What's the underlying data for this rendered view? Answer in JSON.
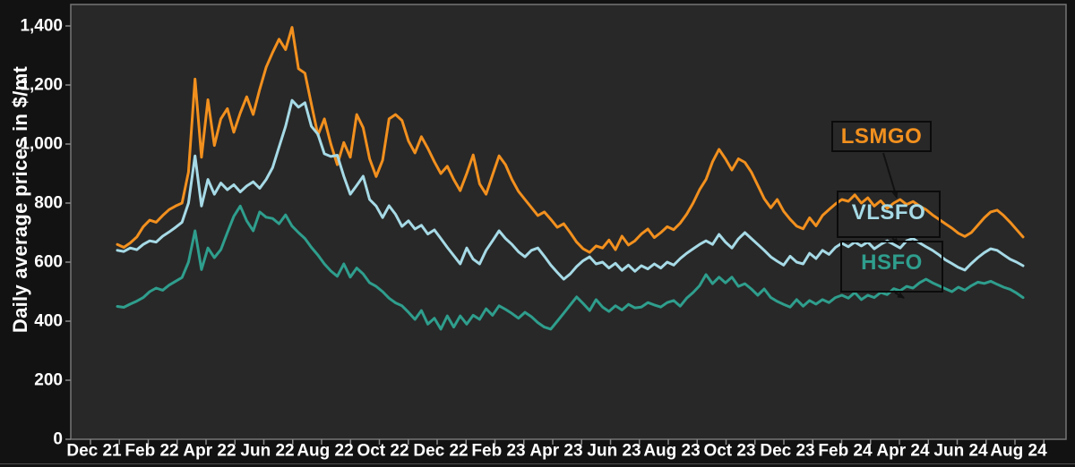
{
  "chart_data": {
    "type": "line",
    "title": "",
    "ylabel": "Daily average prices in $/mt",
    "xlabel": "",
    "ylim": [
      0,
      1473
    ],
    "grid": false,
    "legend_position": "callout-boxes-overlaid-right",
    "y_ticks": [
      0,
      200,
      400,
      600,
      800,
      1000,
      1200,
      1400
    ],
    "y_tick_labels": [
      "0",
      "200",
      "400",
      "600",
      "800",
      "1,000",
      "1,200",
      "1,400"
    ],
    "x_tick_labels": [
      "Dec 21",
      "Feb 22",
      "Apr 22",
      "Jun 22",
      "Aug 22",
      "Oct 22",
      "Dec 22",
      "Feb 23",
      "Apr 23",
      "Jun 23",
      "Aug 23",
      "Oct 23",
      "Dec 23",
      "Feb 24",
      "Apr 24",
      "Jun 24",
      "Aug 24"
    ],
    "x_minor_tick_interval": "monthly",
    "series": [
      {
        "name": "LSMGO",
        "color": "#F2901E",
        "values": [
          660,
          650,
          665,
          685,
          720,
          742,
          735,
          758,
          778,
          790,
          800,
          905,
          1220,
          955,
          1150,
          995,
          1085,
          1120,
          1040,
          1105,
          1160,
          1100,
          1185,
          1260,
          1310,
          1355,
          1320,
          1395,
          1255,
          1240,
          1135,
          1030,
          1085,
          1000,
          930,
          1005,
          955,
          1100,
          1055,
          950,
          890,
          945,
          1085,
          1100,
          1080,
          1010,
          970,
          1025,
          985,
          940,
          900,
          925,
          880,
          842,
          900,
          963,
          865,
          830,
          895,
          960,
          930,
          880,
          840,
          812,
          785,
          758,
          770,
          745,
          718,
          730,
          700,
          668,
          645,
          633,
          655,
          648,
          675,
          642,
          688,
          658,
          672,
          695,
          712,
          683,
          700,
          720,
          710,
          732,
          762,
          800,
          845,
          880,
          940,
          982,
          950,
          912,
          950,
          938,
          905,
          860,
          815,
          784,
          812,
          772,
          745,
          722,
          713,
          750,
          723,
          758,
          778,
          797,
          812,
          806,
          828,
          800,
          818,
          790,
          808,
          782,
          800,
          812,
          795,
          805,
          790,
          778,
          760,
          745,
          730,
          715,
          698,
          687,
          700,
          725,
          750,
          770,
          776,
          758,
          735,
          710,
          685
        ]
      },
      {
        "name": "VLSFO",
        "color": "#A6DAE6",
        "values": [
          640,
          636,
          648,
          642,
          660,
          672,
          668,
          688,
          702,
          718,
          735,
          800,
          960,
          790,
          880,
          830,
          868,
          845,
          862,
          838,
          858,
          872,
          850,
          880,
          920,
          990,
          1060,
          1148,
          1125,
          1140,
          1060,
          1033,
          967,
          958,
          962,
          891,
          830,
          860,
          891,
          812,
          790,
          751,
          791,
          762,
          721,
          740,
          712,
          725,
          695,
          709,
          680,
          650,
          622,
          594,
          648,
          610,
          594,
          640,
          672,
          706,
          680,
          660,
          635,
          618,
          640,
          648,
          620,
          590,
          565,
          542,
          560,
          585,
          605,
          618,
          594,
          600,
          580,
          596,
          572,
          590,
          569,
          588,
          577,
          594,
          580,
          600,
          590,
          612,
          630,
          645,
          660,
          672,
          660,
          694,
          668,
          648,
          679,
          700,
          680,
          660,
          640,
          618,
          603,
          590,
          620,
          600,
          594,
          630,
          612,
          640,
          626,
          650,
          664,
          652,
          668,
          655,
          668,
          645,
          660,
          672,
          660,
          648,
          672,
          680,
          665,
          652,
          640,
          625,
          608,
          595,
          582,
          573,
          595,
          615,
          632,
          645,
          640,
          625,
          610,
          600,
          588
        ]
      },
      {
        "name": "HSFO",
        "color": "#2F9E8D",
        "values": [
          450,
          447,
          458,
          468,
          480,
          500,
          512,
          505,
          522,
          535,
          548,
          600,
          706,
          575,
          648,
          615,
          642,
          700,
          755,
          790,
          740,
          706,
          770,
          752,
          748,
          730,
          760,
          722,
          700,
          680,
          650,
          624,
          594,
          570,
          552,
          594,
          549,
          580,
          560,
          530,
          518,
          500,
          478,
          462,
          452,
          430,
          406,
          436,
          390,
          410,
          373,
          418,
          380,
          418,
          390,
          420,
          406,
          442,
          420,
          452,
          440,
          426,
          410,
          430,
          415,
          395,
          380,
          373,
          400,
          427,
          455,
          482,
          460,
          436,
          473,
          448,
          433,
          452,
          438,
          457,
          445,
          448,
          463,
          455,
          448,
          463,
          470,
          451,
          478,
          497,
          520,
          558,
          527,
          549,
          530,
          549,
          518,
          527,
          509,
          488,
          509,
          480,
          467,
          457,
          448,
          473,
          451,
          470,
          458,
          473,
          463,
          480,
          488,
          478,
          497,
          473,
          488,
          480,
          497,
          490,
          510,
          503,
          518,
          512,
          530,
          542,
          530,
          520,
          510,
          500,
          515,
          505,
          520,
          532,
          528,
          535,
          525,
          515,
          508,
          495,
          480
        ]
      }
    ],
    "x_range_note": "daily series from mid-Dec 2021 to early-Aug 2024"
  },
  "colors": {
    "page_background": "#121212",
    "panel_background": "#282828",
    "panel_border": "#757575",
    "axis_text": "#ffffff",
    "tick_color": "#8a8a8a",
    "callout_border": "#0b0b0b",
    "arrow_color": "#111111",
    "bottom_rule": "#4d4d4d"
  }
}
